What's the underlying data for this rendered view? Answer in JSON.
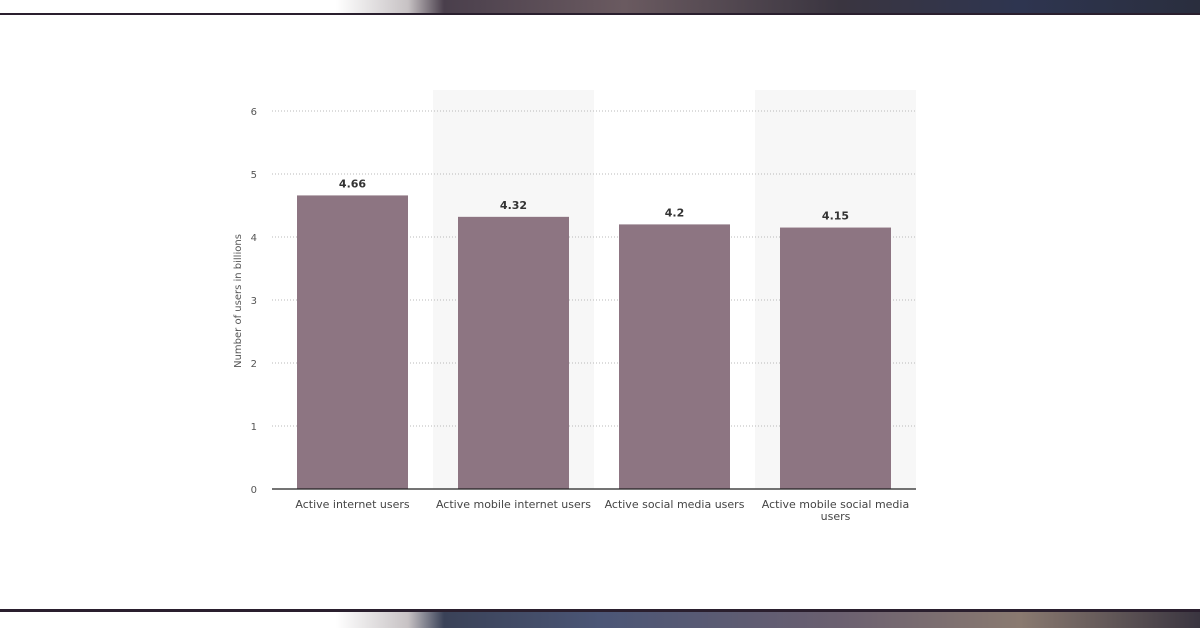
{
  "chart_data": {
    "type": "bar",
    "categories": [
      [
        "Active internet users"
      ],
      [
        "Active mobile internet users"
      ],
      [
        "Active social media users"
      ],
      [
        "Active mobile social media",
        "users"
      ]
    ],
    "values": [
      4.66,
      4.32,
      4.2,
      4.15
    ],
    "value_labels": [
      "4.66",
      "4.32",
      "4.2",
      "4.15"
    ],
    "title": "",
    "xlabel": "",
    "ylabel": "Number of users in billions",
    "ylim": [
      0,
      6
    ],
    "yticks": [
      0,
      1,
      2,
      3,
      4,
      5,
      6
    ],
    "grid": true,
    "bar_color": "#8d7582",
    "band_color": "#f7f7f7"
  }
}
